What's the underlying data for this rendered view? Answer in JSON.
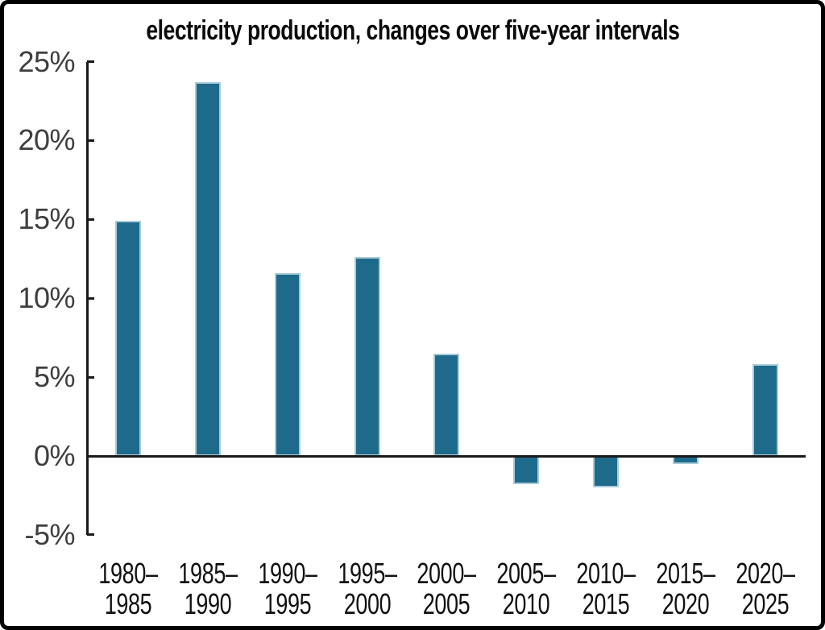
{
  "chart_data": {
    "type": "bar",
    "title": "electricity production, changes over five-year intervals",
    "categories": [
      "1980–1985",
      "1985–1990",
      "1990–1995",
      "1995–2000",
      "2000–2005",
      "2005–2010",
      "2010–2015",
      "2015–2020",
      "2020–2025"
    ],
    "category_lines": [
      [
        "1980–",
        "1985"
      ],
      [
        "1985–",
        "1990"
      ],
      [
        "1990–",
        "1995"
      ],
      [
        "1995–",
        "2000"
      ],
      [
        "2000–",
        "2005"
      ],
      [
        "2005–",
        "2010"
      ],
      [
        "2010–",
        "2015"
      ],
      [
        "2015–",
        "2020"
      ],
      [
        "2020–",
        "2025"
      ]
    ],
    "values": [
      14.9,
      23.7,
      11.6,
      12.6,
      6.5,
      -1.8,
      -2.0,
      -0.5,
      5.8
    ],
    "xlabel": "",
    "ylabel": "",
    "ylim": [
      -5,
      25
    ],
    "y_ticks": [
      {
        "label": "25%",
        "value": 25
      },
      {
        "label": "20%",
        "value": 20
      },
      {
        "label": "15%",
        "value": 15
      },
      {
        "label": "10%",
        "value": 10
      },
      {
        "label": "5%",
        "value": 5
      },
      {
        "label": "0%",
        "value": 0
      },
      {
        "label": "-5%",
        "value": -5
      }
    ],
    "grid": false,
    "legend": false,
    "colors": {
      "bar_fill": "#1E6A8A",
      "bar_edge": "#A8CCD9",
      "axis": "#1A1A1A",
      "y_tick_label": "#3E3E3E",
      "x_tick_label": "#111111",
      "title": "#0A0A0A",
      "frame_border": "#000000",
      "background": "#FFFFFF"
    }
  }
}
